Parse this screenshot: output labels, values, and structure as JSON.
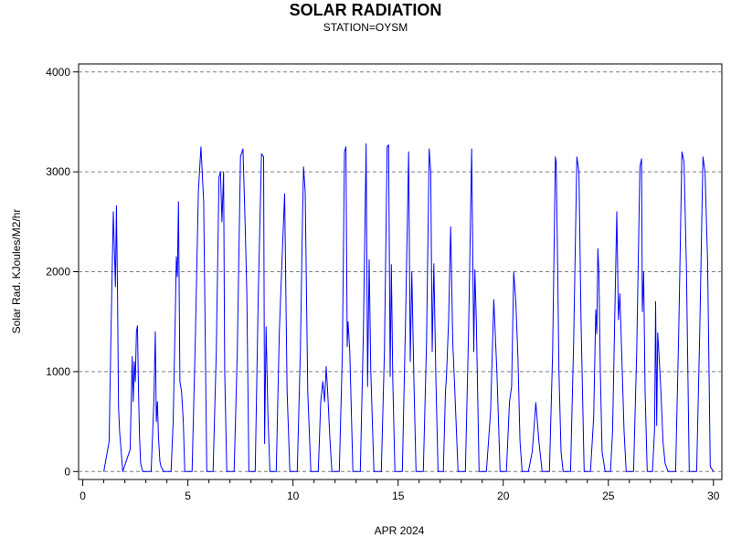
{
  "chart_data": {
    "type": "line",
    "title": "SOLAR RADIATION",
    "subtitle": "STATION=OYSM",
    "xlabel": "APR 2024",
    "ylabel": "Solar Rad. KJoules/M2/hr",
    "xlim": [
      -0.2,
      30.4
    ],
    "ylim": [
      -80,
      4080
    ],
    "xticks": [
      0,
      5,
      10,
      15,
      20,
      25,
      30
    ],
    "yticks": [
      0,
      1000,
      2000,
      3000,
      4000
    ],
    "grid": "horizontal dashed",
    "legend": "none",
    "series": [
      {
        "color": "#0000ff",
        "x": [
          1.0,
          1.25,
          1.35,
          1.45,
          1.55,
          1.6,
          1.65,
          1.7,
          1.75,
          1.9,
          2.25,
          2.35,
          2.4,
          2.45,
          2.5,
          2.55,
          2.6,
          2.65,
          2.7,
          2.75,
          2.85,
          3.25,
          3.38,
          3.45,
          3.5,
          3.55,
          3.6,
          3.67,
          3.72,
          3.85,
          4.2,
          4.3,
          4.4,
          4.45,
          4.5,
          4.55,
          4.62,
          4.7,
          4.78,
          4.85,
          5.2,
          5.35,
          5.5,
          5.62,
          5.75,
          5.9,
          6.2,
          6.35,
          6.48,
          6.55,
          6.62,
          6.7,
          6.75,
          6.85,
          7.2,
          7.35,
          7.5,
          7.62,
          7.72,
          7.8,
          7.9,
          8.2,
          8.35,
          8.5,
          8.6,
          8.65,
          8.72,
          8.8,
          8.9,
          9.2,
          9.35,
          9.5,
          9.6,
          9.72,
          9.85,
          10.2,
          10.35,
          10.45,
          10.5,
          10.58,
          10.7,
          10.85,
          11.2,
          11.32,
          11.42,
          11.5,
          11.58,
          11.65,
          11.75,
          11.85,
          12.2,
          12.35,
          12.45,
          12.52,
          12.58,
          12.62,
          12.7,
          12.85,
          13.2,
          13.35,
          13.48,
          13.55,
          13.62,
          13.7,
          13.85,
          14.2,
          14.35,
          14.48,
          14.55,
          14.62,
          14.68,
          14.75,
          14.85,
          15.2,
          15.35,
          15.5,
          15.58,
          15.65,
          15.75,
          15.85,
          16.2,
          16.35,
          16.48,
          16.55,
          16.62,
          16.7,
          16.8,
          16.9,
          17.15,
          17.25,
          17.3,
          17.4,
          17.5,
          17.6,
          17.7,
          17.85,
          18.2,
          18.35,
          18.5,
          18.6,
          18.65,
          18.72,
          18.85,
          19.2,
          19.4,
          19.55,
          19.7,
          19.85,
          20.15,
          20.3,
          20.4,
          20.5,
          20.6,
          20.7,
          20.8,
          20.9,
          21.2,
          21.38,
          21.55,
          21.7,
          21.85,
          22.2,
          22.35,
          22.48,
          22.52,
          22.6,
          22.65,
          22.75,
          22.85,
          23.2,
          23.35,
          23.5,
          23.6,
          23.7,
          23.85,
          24.15,
          24.3,
          24.4,
          24.45,
          24.5,
          24.55,
          24.62,
          24.7,
          24.85,
          25.1,
          25.2,
          25.3,
          25.4,
          25.48,
          25.55,
          25.62,
          25.75,
          25.85,
          26.2,
          26.35,
          26.5,
          26.58,
          26.62,
          26.68,
          26.75,
          26.85,
          27.1,
          27.2,
          27.25,
          27.3,
          27.35,
          27.4,
          27.5,
          27.6,
          27.7,
          27.85,
          28.2,
          28.35,
          28.5,
          28.6,
          28.72,
          28.85,
          29.2,
          29.35,
          29.5,
          29.6,
          29.72,
          29.85,
          30.0
        ],
        "y": [
          0,
          300,
          1500,
          2600,
          1850,
          2660,
          1800,
          650,
          400,
          0,
          220,
          1150,
          700,
          1100,
          900,
          1400,
          1460,
          800,
          350,
          80,
          0,
          0,
          700,
          1400,
          500,
          700,
          350,
          100,
          50,
          0,
          0,
          500,
          1550,
          2150,
          1950,
          2700,
          900,
          800,
          500,
          0,
          0,
          1300,
          2800,
          3250,
          2700,
          0,
          0,
          1200,
          2950,
          3000,
          2500,
          3000,
          1000,
          0,
          0,
          1200,
          3150,
          3230,
          2500,
          1800,
          0,
          0,
          1800,
          3180,
          3150,
          280,
          1450,
          600,
          0,
          0,
          1400,
          2250,
          2780,
          800,
          0,
          0,
          1200,
          2500,
          3050,
          2800,
          800,
          0,
          0,
          700,
          900,
          700,
          1050,
          800,
          350,
          0,
          0,
          1200,
          3200,
          3250,
          1250,
          1500,
          1200,
          0,
          0,
          1400,
          3280,
          850,
          2120,
          1000,
          0,
          0,
          1200,
          3250,
          3270,
          950,
          2070,
          900,
          0,
          0,
          1500,
          3200,
          1100,
          2000,
          900,
          0,
          0,
          1300,
          3230,
          3000,
          1200,
          2080,
          900,
          0,
          0,
          800,
          950,
          1500,
          2450,
          1300,
          800,
          0,
          0,
          1400,
          3230,
          1200,
          2020,
          1500,
          0,
          0,
          600,
          1720,
          1000,
          0,
          0,
          700,
          850,
          2000,
          1700,
          1150,
          300,
          0,
          0,
          200,
          690,
          300,
          0,
          0,
          1200,
          3150,
          3100,
          1920,
          1000,
          200,
          0,
          0,
          1300,
          3150,
          3000,
          1500,
          0,
          0,
          540,
          1620,
          1380,
          2230,
          2000,
          1000,
          200,
          0,
          0,
          400,
          1500,
          2600,
          1520,
          1780,
          1300,
          400,
          0,
          0,
          1200,
          3050,
          3130,
          1600,
          2000,
          800,
          0,
          0,
          430,
          1700,
          460,
          1390,
          1200,
          800,
          300,
          80,
          0,
          0,
          1400,
          3200,
          3100,
          2000,
          0,
          0,
          1400,
          3150,
          3000,
          2100,
          50,
          0
        ]
      }
    ]
  }
}
